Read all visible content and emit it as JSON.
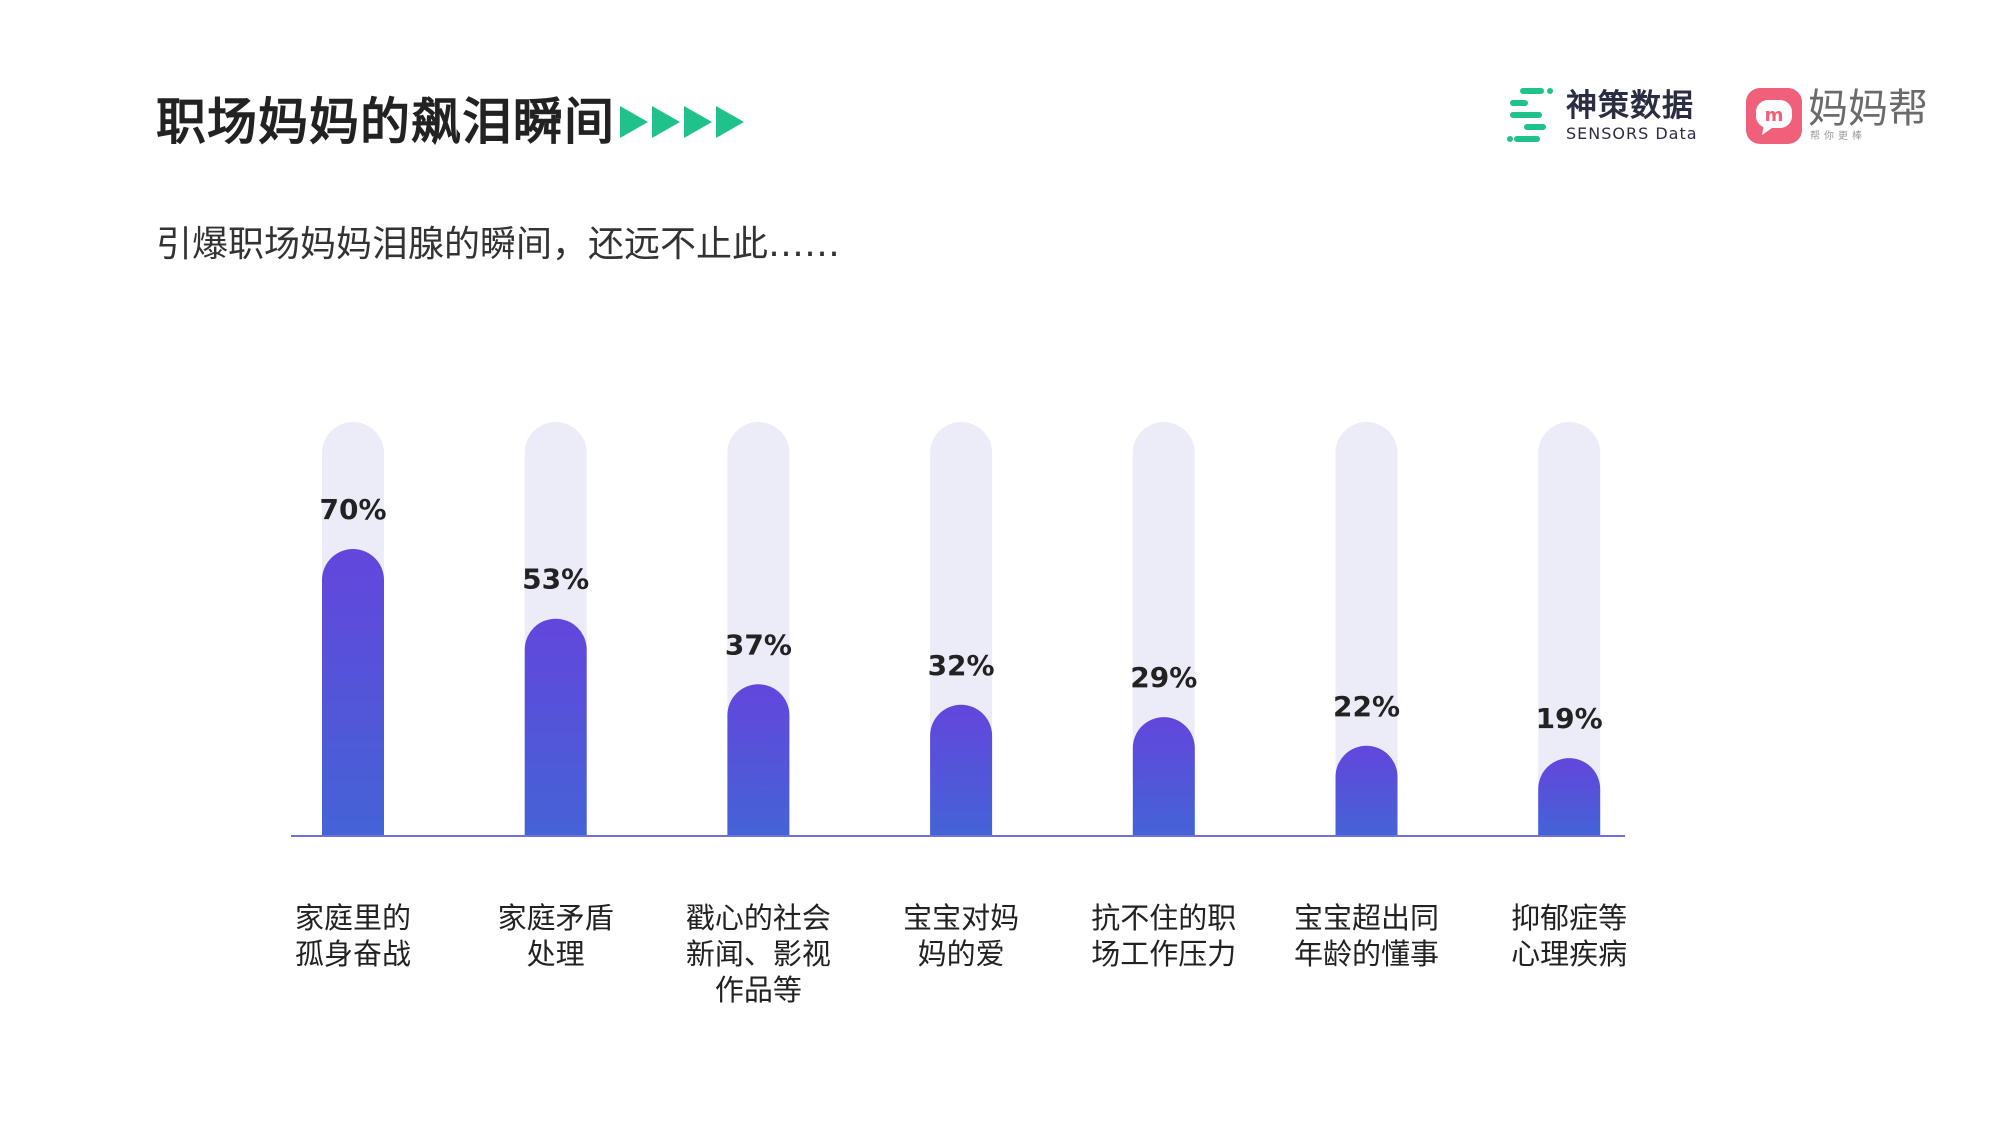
{
  "header": {
    "title": "职场妈妈的飙泪瞬间",
    "subtitle": "引爆职场妈妈泪腺的瞬间，还远不止此……"
  },
  "logos": {
    "sensors_cn": "神策数据",
    "sensors_en": "SENSORS Data",
    "mama_cn": "妈妈帮",
    "mama_slogan": "帮你更棒",
    "mama_badge_letter": "m"
  },
  "colors": {
    "accent_green": "#1fc28b",
    "bar_top": "#6346dc",
    "bar_bottom": "#4463d6",
    "track": "#ecebf8",
    "baseline": "#6f72d4"
  },
  "chart_data": {
    "type": "bar",
    "categories": [
      "家庭里的孤身奋战",
      "家庭矛盾处理",
      "戳心的社会新闻、影视作品等",
      "宝宝对妈妈的爱",
      "抗不住的职场工作压力",
      "宝宝超出同年龄的懂事",
      "抑郁症等心理疾病"
    ],
    "category_lines": [
      [
        "家庭里的",
        "孤身奋战"
      ],
      [
        "家庭矛盾",
        "处理"
      ],
      [
        "戳心的社会",
        "新闻、影视",
        "作品等"
      ],
      [
        "宝宝对妈",
        "妈的爱"
      ],
      [
        "抗不住的职",
        "场工作压力"
      ],
      [
        "宝宝超出同",
        "年龄的懂事"
      ],
      [
        "抑郁症等",
        "心理疾病"
      ]
    ],
    "values": [
      70,
      53,
      37,
      32,
      29,
      22,
      19
    ],
    "value_labels": [
      "70%",
      "53%",
      "37%",
      "32%",
      "29%",
      "22%",
      "19%"
    ],
    "unit": "%",
    "ylim": [
      0,
      100
    ],
    "xlabel": "",
    "ylabel": "",
    "grid": false,
    "legend": "none"
  }
}
